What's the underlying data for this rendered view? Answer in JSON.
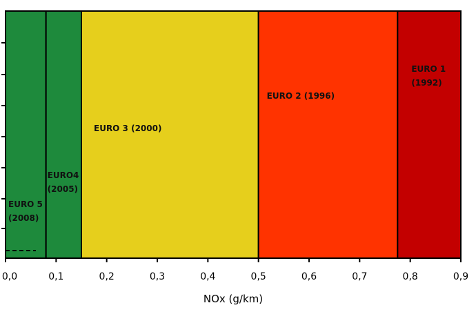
{
  "chart_data": {
    "type": "bar",
    "xlabel": "NOx (g/km)",
    "xlim": [
      0,
      0.9
    ],
    "x_ticks": [
      "0,0",
      "0,1",
      "0,2",
      "0,3",
      "0,4",
      "0,5",
      "0,6",
      "0,7",
      "0,8",
      "0,9"
    ],
    "bands": [
      {
        "label_lines": [
          "EURO 5",
          "(2008)"
        ],
        "x_start": 0.0,
        "x_end": 0.08,
        "color": "#1e8a3c"
      },
      {
        "label_lines": [
          "EURO4",
          "(2005)"
        ],
        "x_start": 0.08,
        "x_end": 0.15,
        "color": "#1e8a3c"
      },
      {
        "label_lines": [
          "EURO 3 (2000)"
        ],
        "x_start": 0.15,
        "x_end": 0.5,
        "color": "#e6cf1c"
      },
      {
        "label_lines": [
          "EURO 2 (1996)"
        ],
        "x_start": 0.5,
        "x_end": 0.775,
        "color": "#ff3300"
      },
      {
        "label_lines": [
          "EURO 1",
          "(1992)"
        ],
        "x_start": 0.775,
        "x_end": 0.9,
        "color": "#c30000"
      }
    ],
    "dashed_marker": {
      "x_start": 0.0,
      "x_end": 0.06
    }
  }
}
